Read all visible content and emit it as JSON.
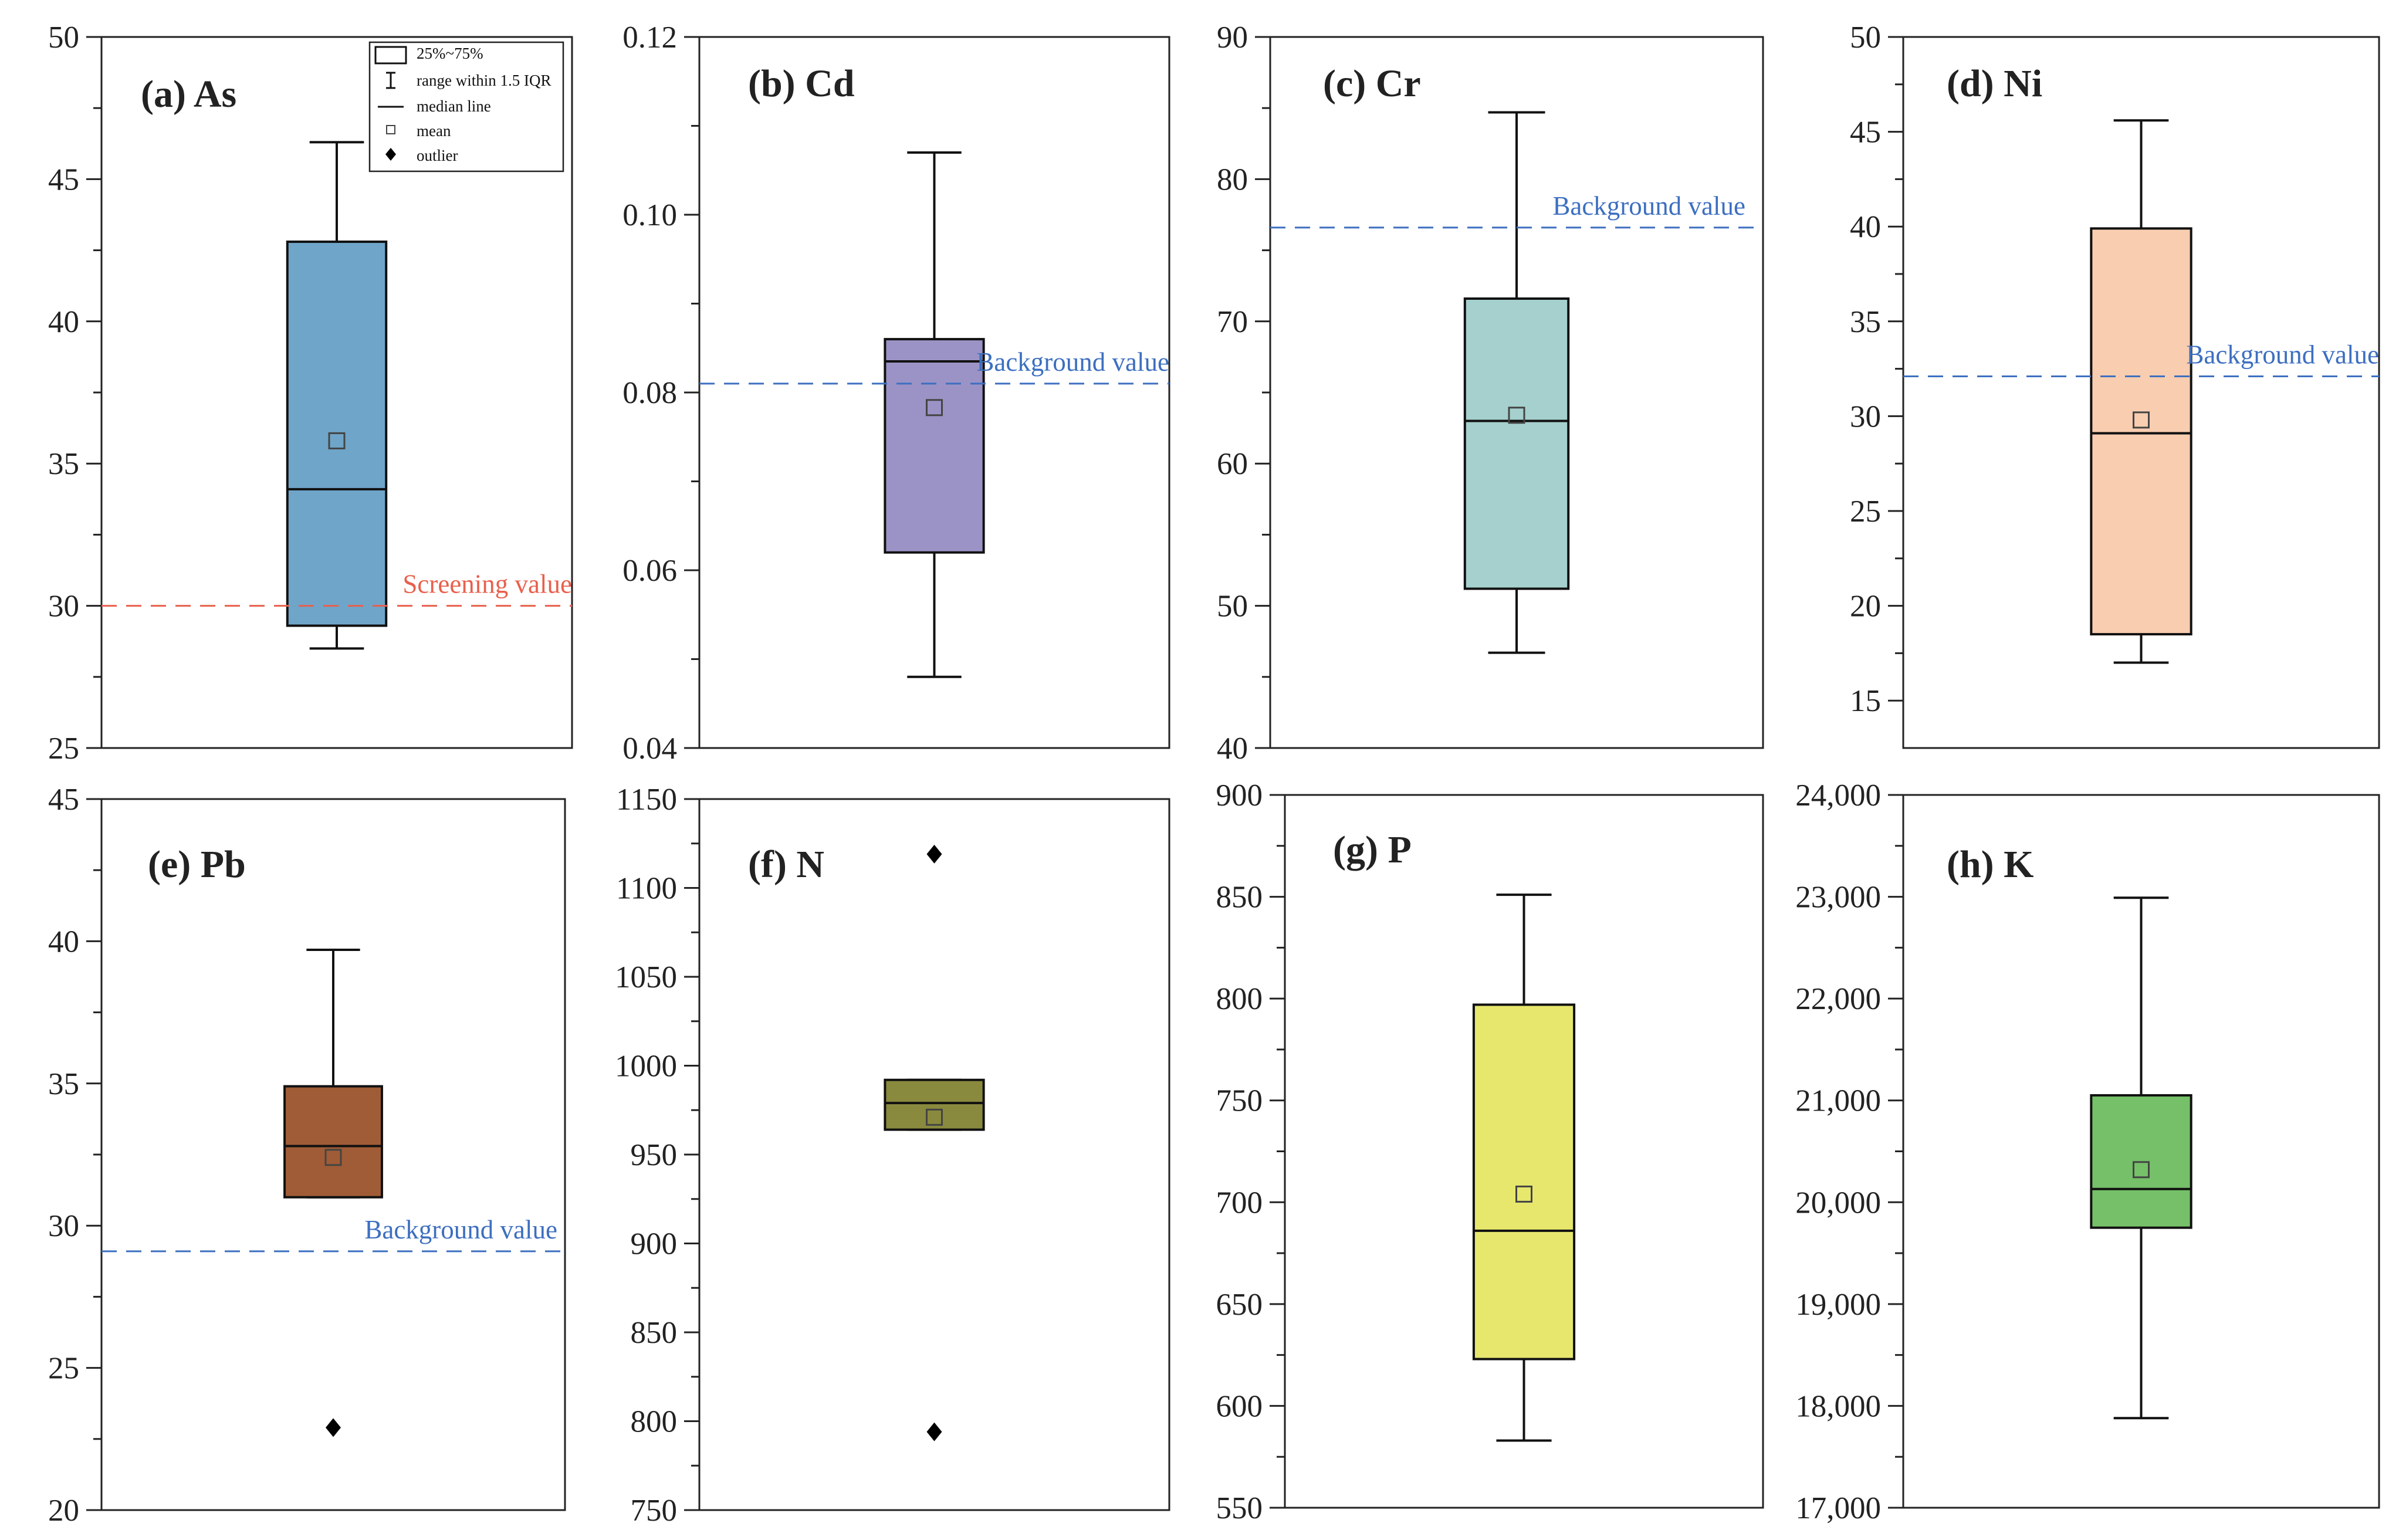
{
  "chart_data": [
    {
      "type": "box",
      "title": "(a) As",
      "ylim": [
        25,
        50
      ],
      "yticks": [
        25,
        30,
        35,
        40,
        45,
        50
      ],
      "tick_labels": [
        "25",
        "30",
        "35",
        "40",
        "45",
        "50"
      ],
      "box": {
        "whisker_low": 28.5,
        "q1": 29.3,
        "median": 34.1,
        "q3": 42.8,
        "whisker_high": 46.3,
        "mean": 35.8
      },
      "fill": "#6fa5c9",
      "outliers": [],
      "reference": {
        "label": "Screening value",
        "value": 30.0,
        "color": "#e8604c"
      },
      "legend": {
        "items": [
          "25%~75%",
          "range within 1.5 IQR",
          "median line",
          "mean",
          "outlier"
        ]
      }
    },
    {
      "type": "box",
      "title": "(b) Cd",
      "ylim": [
        0.04,
        0.12
      ],
      "yticks": [
        0.04,
        0.06,
        0.08,
        0.1,
        0.12
      ],
      "tick_labels": [
        "0.04",
        "0.06",
        "0.08",
        "0.10",
        "0.12"
      ],
      "box": {
        "whisker_low": 0.048,
        "q1": 0.062,
        "median": 0.0835,
        "q3": 0.086,
        "whisker_high": 0.107,
        "mean": 0.0783
      },
      "fill": "#9b93c6",
      "outliers": [],
      "reference": {
        "label": "Background value",
        "value": 0.081,
        "color": "#3d6fc0"
      }
    },
    {
      "type": "box",
      "title": "(c) Cr",
      "ylim": [
        40,
        90
      ],
      "yticks": [
        40,
        50,
        60,
        70,
        80,
        90
      ],
      "tick_labels": [
        "40",
        "50",
        "60",
        "70",
        "80",
        "90"
      ],
      "box": {
        "whisker_low": 46.7,
        "q1": 51.2,
        "median": 63.0,
        "q3": 71.6,
        "whisker_high": 84.7,
        "mean": 63.4
      },
      "fill": "#a5d0cd",
      "outliers": [],
      "reference": {
        "label": "Background value",
        "value": 76.6,
        "color": "#3d6fc0"
      }
    },
    {
      "type": "box",
      "title": "(d) Ni",
      "ylim": [
        12.5,
        50
      ],
      "yticks": [
        15,
        20,
        25,
        30,
        35,
        40,
        45,
        50
      ],
      "tick_labels": [
        "15",
        "20",
        "25",
        "30",
        "35",
        "40",
        "45",
        "50"
      ],
      "box": {
        "whisker_low": 17.0,
        "q1": 18.5,
        "median": 29.1,
        "q3": 39.9,
        "whisker_high": 45.6,
        "mean": 29.8
      },
      "fill": "#f8cdb0",
      "outliers": [],
      "reference": {
        "label": "Background value",
        "value": 32.1,
        "color": "#3d6fc0"
      }
    },
    {
      "type": "box",
      "title": "(e) Pb",
      "ylim": [
        20,
        45
      ],
      "yticks": [
        20,
        25,
        30,
        35,
        40,
        45
      ],
      "tick_labels": [
        "20",
        "25",
        "30",
        "35",
        "40",
        "45"
      ],
      "box": {
        "whisker_low": 31.0,
        "q1": 31.0,
        "median": 32.8,
        "q3": 34.9,
        "whisker_high": 39.7,
        "mean": 32.4
      },
      "fill": "#a05c36",
      "outliers": [
        22.9
      ],
      "reference": {
        "label": "Background value",
        "value": 29.1,
        "color": "#3d6fc0"
      }
    },
    {
      "type": "box",
      "title": "(f) N",
      "ylim": [
        750,
        1150
      ],
      "yticks": [
        750,
        800,
        850,
        900,
        950,
        1000,
        1050,
        1100,
        1150
      ],
      "tick_labels": [
        "750",
        "800",
        "850",
        "900",
        "950",
        "1000",
        "1050",
        "1100",
        "1150"
      ],
      "box": {
        "whisker_low": 964,
        "q1": 964,
        "median": 979,
        "q3": 992,
        "whisker_high": 992,
        "mean": 971
      },
      "fill": "#8a8a3e",
      "outliers": [
        1119,
        794
      ],
      "reference": null
    },
    {
      "type": "box",
      "title": "(g) P",
      "ylim": [
        550,
        900
      ],
      "yticks": [
        550,
        600,
        650,
        700,
        750,
        800,
        850,
        900
      ],
      "tick_labels": [
        "550",
        "600",
        "650",
        "700",
        "750",
        "800",
        "850",
        "900"
      ],
      "box": {
        "whisker_low": 583,
        "q1": 623,
        "median": 686,
        "q3": 797,
        "whisker_high": 851,
        "mean": 704
      },
      "fill": "#e7e76e",
      "outliers": [],
      "reference": null
    },
    {
      "type": "box",
      "title": "(h) K",
      "ylim": [
        17000,
        24000
      ],
      "yticks": [
        17000,
        18000,
        19000,
        20000,
        21000,
        22000,
        23000,
        24000
      ],
      "tick_labels": [
        "17,000",
        "18,000",
        "19,000",
        "20,000",
        "21,000",
        "22,000",
        "23,000",
        "24,000"
      ],
      "box": {
        "whisker_low": 17880,
        "q1": 19750,
        "median": 20130,
        "q3": 21050,
        "whisker_high": 22990,
        "mean": 20320
      },
      "fill": "#75c068",
      "outliers": [],
      "reference": null
    }
  ]
}
